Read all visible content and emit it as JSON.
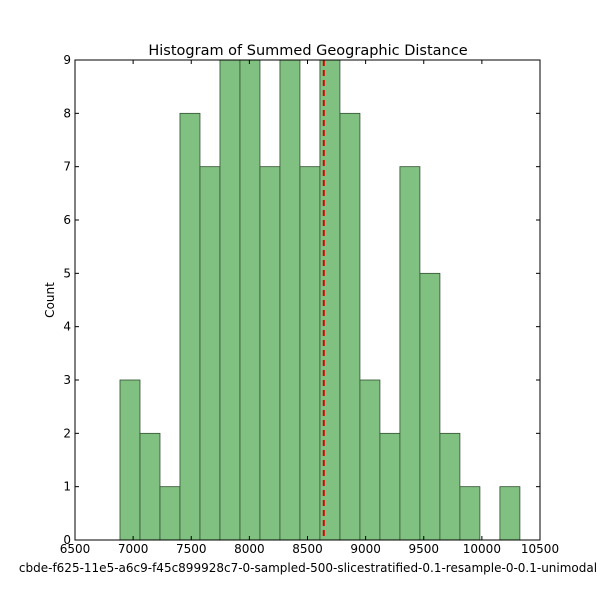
{
  "chart_data": {
    "type": "bar",
    "title": "Histogram of Summed Geographic Distance",
    "xlabel": "cbde-f625-11e5-a6c9-f45c899928c7-0-sampled-500-slicestratified-0.1-resample-0-0.1-unimodal",
    "ylabel": "Count",
    "xlim": [
      6500,
      10500
    ],
    "ylim": [
      0,
      9
    ],
    "xticks": [
      6500,
      7000,
      7500,
      8000,
      8500,
      9000,
      9500,
      10000,
      10500
    ],
    "yticks": [
      0,
      1,
      2,
      3,
      4,
      5,
      6,
      7,
      8,
      9
    ],
    "bin_edges": [
      6887,
      7059,
      7231,
      7403,
      7575,
      7747,
      7919,
      8091,
      8263,
      8435,
      8607,
      8779,
      8951,
      9123,
      9295,
      9467,
      9639,
      9811,
      9983,
      10155,
      10327
    ],
    "counts": [
      3,
      2,
      1,
      8,
      7,
      9,
      9,
      7,
      9,
      7,
      9,
      8,
      3,
      2,
      7,
      5,
      2,
      1,
      0,
      1
    ],
    "bar_color": "#80c080",
    "bar_edge_color": "#2f4f2f",
    "mean_line": {
      "value": 8640,
      "color": "#dd0000",
      "style": "dashed"
    },
    "grid": false
  }
}
